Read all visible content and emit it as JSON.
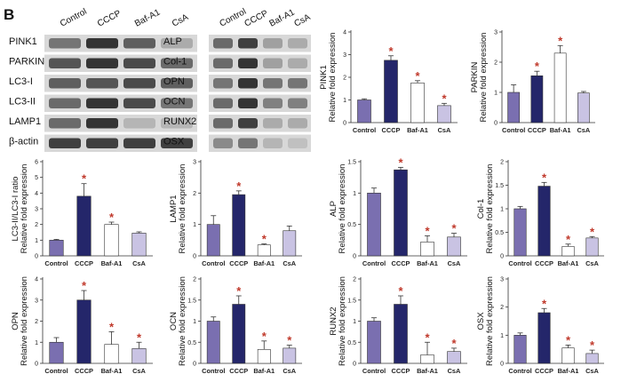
{
  "panel_label": "B",
  "colors": {
    "Control": "#7a6fb0",
    "CCCP": "#24266a",
    "Baf-A1": "#ffffff",
    "CsA": "#c9c3e3",
    "star": "#c0392b"
  },
  "blots": {
    "lanes": [
      "Control",
      "CCCP",
      "Baf-A1",
      "CsA"
    ],
    "left": {
      "rows": [
        {
          "label": "PINK1",
          "intensity": [
            0.55,
            0.85,
            0.65,
            0.3
          ]
        },
        {
          "label": "PARKIN",
          "intensity": [
            0.7,
            0.85,
            0.75,
            0.6
          ]
        },
        {
          "label": "LC3-I",
          "intensity": [
            0.65,
            0.7,
            0.75,
            0.65
          ]
        },
        {
          "label": "LC3-II",
          "intensity": [
            0.6,
            0.85,
            0.75,
            0.55
          ]
        },
        {
          "label": "LAMP1",
          "intensity": [
            0.6,
            0.85,
            0.25,
            0.25
          ]
        },
        {
          "label": "β-actin",
          "intensity": [
            0.8,
            0.8,
            0.8,
            0.8
          ]
        }
      ]
    },
    "right": {
      "rows": [
        {
          "label": "ALP",
          "intensity": [
            0.6,
            0.8,
            0.35,
            0.3
          ]
        },
        {
          "label": "Col-1",
          "intensity": [
            0.6,
            0.85,
            0.35,
            0.3
          ]
        },
        {
          "label": "OPN",
          "intensity": [
            0.55,
            0.85,
            0.55,
            0.55
          ]
        },
        {
          "label": "OCN",
          "intensity": [
            0.6,
            0.85,
            0.5,
            0.5
          ]
        },
        {
          "label": "RUNX2",
          "intensity": [
            0.6,
            0.8,
            0.3,
            0.3
          ]
        },
        {
          "label": "OSX",
          "intensity": [
            0.45,
            0.55,
            0.25,
            0.2
          ]
        }
      ]
    }
  },
  "chart_data": [
    {
      "type": "bar",
      "id": "pink1",
      "categories": [
        "Control",
        "CCCP",
        "Baf-A1",
        "CsA"
      ],
      "values": [
        1.0,
        2.75,
        1.75,
        0.75
      ],
      "errors": [
        0.05,
        0.2,
        0.1,
        0.1
      ],
      "ylabel_top": "PINK1",
      "ylabel_bottom": "Relative fold expression",
      "ylim": [
        0,
        4
      ],
      "ticks": [
        0,
        1,
        2,
        3,
        4
      ],
      "significant": [
        false,
        true,
        true,
        true
      ]
    },
    {
      "type": "bar",
      "id": "parkin",
      "categories": [
        "Control",
        "CCCP",
        "Baf-A1",
        "CsA"
      ],
      "values": [
        1.0,
        1.55,
        2.3,
        0.98
      ],
      "errors": [
        0.25,
        0.15,
        0.25,
        0.05
      ],
      "ylabel_top": "PARKIN",
      "ylabel_bottom": "Relative fold expression",
      "ylim": [
        0,
        3
      ],
      "ticks": [
        0,
        1,
        2,
        3
      ],
      "significant": [
        false,
        true,
        true,
        false
      ]
    },
    {
      "type": "bar",
      "id": "lc3",
      "categories": [
        "Control",
        "CCCP",
        "Baf-A1",
        "CsA"
      ],
      "values": [
        1.0,
        3.8,
        2.0,
        1.45
      ],
      "errors": [
        0.05,
        0.8,
        0.15,
        0.08
      ],
      "ylabel_top": "LC3-II/LC3-I ratio",
      "ylabel_bottom": "Relative fold expression",
      "ylim": [
        0,
        6
      ],
      "ticks": [
        0,
        1,
        2,
        3,
        4,
        5,
        6
      ],
      "significant": [
        false,
        true,
        true,
        false
      ]
    },
    {
      "type": "bar",
      "id": "lamp1",
      "categories": [
        "Control",
        "CCCP",
        "Baf-A1",
        "CsA"
      ],
      "values": [
        1.0,
        1.95,
        0.35,
        0.8
      ],
      "errors": [
        0.28,
        0.12,
        0.03,
        0.15
      ],
      "ylabel_top": "LAMP1",
      "ylabel_bottom": "Relative fold expression",
      "ylim": [
        0,
        3
      ],
      "ticks": [
        0,
        1,
        2,
        3
      ],
      "significant": [
        false,
        true,
        true,
        false
      ]
    },
    {
      "type": "bar",
      "id": "alp",
      "categories": [
        "Control",
        "CCCP",
        "Baf-A1",
        "CsA"
      ],
      "values": [
        1.0,
        1.37,
        0.22,
        0.3
      ],
      "errors": [
        0.08,
        0.04,
        0.1,
        0.06
      ],
      "ylabel_top": "ALP",
      "ylabel_bottom": "Relative fold expression",
      "ylim": [
        0,
        1.5
      ],
      "ticks": [
        0,
        0.5,
        1,
        1.5
      ],
      "tick_labels": [
        "0",
        "0.5",
        "1",
        "1.5"
      ],
      "significant": [
        false,
        true,
        true,
        true
      ]
    },
    {
      "type": "bar",
      "id": "col1",
      "categories": [
        "Control",
        "CCCP",
        "Baf-A1",
        "CsA"
      ],
      "values": [
        1.0,
        1.48,
        0.2,
        0.38
      ],
      "errors": [
        0.05,
        0.08,
        0.05,
        0.03
      ],
      "ylabel_top": "Col-1",
      "ylabel_bottom": "Relative fold expression",
      "ylim": [
        0,
        2
      ],
      "ticks": [
        0,
        0.5,
        1,
        1.5,
        2
      ],
      "tick_labels": [
        "0",
        "0.5",
        "1",
        "1.5",
        "2"
      ],
      "significant": [
        false,
        true,
        true,
        true
      ]
    },
    {
      "type": "bar",
      "id": "opn",
      "categories": [
        "Control",
        "CCCP",
        "Baf-A1",
        "CsA"
      ],
      "values": [
        1.0,
        3.0,
        0.9,
        0.7
      ],
      "errors": [
        0.22,
        0.45,
        0.6,
        0.3
      ],
      "ylabel_top": "OPN",
      "ylabel_bottom": "Relative fold expression",
      "ylim": [
        0,
        4
      ],
      "ticks": [
        0,
        1,
        2,
        3,
        4
      ],
      "significant": [
        false,
        true,
        true,
        true
      ]
    },
    {
      "type": "bar",
      "id": "ocn",
      "categories": [
        "Control",
        "CCCP",
        "Baf-A1",
        "CsA"
      ],
      "values": [
        1.0,
        1.4,
        0.33,
        0.36
      ],
      "errors": [
        0.1,
        0.2,
        0.2,
        0.07
      ],
      "ylabel_top": "OCN",
      "ylabel_bottom": "Relative fold expression",
      "ylim": [
        0,
        2
      ],
      "ticks": [
        0,
        0.5,
        1,
        1.5,
        2
      ],
      "tick_labels": [
        "0",
        "0.5",
        "1",
        "1.5",
        "2"
      ],
      "significant": [
        false,
        true,
        true,
        true
      ]
    },
    {
      "type": "bar",
      "id": "runx2",
      "categories": [
        "Control",
        "CCCP",
        "Baf-A1",
        "CsA"
      ],
      "values": [
        1.0,
        1.4,
        0.2,
        0.28
      ],
      "errors": [
        0.08,
        0.2,
        0.3,
        0.08
      ],
      "ylabel_top": "RUNX2",
      "ylabel_bottom": "Relative fold expression",
      "ylim": [
        0,
        2
      ],
      "ticks": [
        0,
        0.5,
        1,
        1.5,
        2
      ],
      "tick_labels": [
        "0",
        "0.5",
        "1",
        "1.5",
        "2"
      ],
      "significant": [
        false,
        true,
        true,
        true
      ]
    },
    {
      "type": "bar",
      "id": "osx",
      "categories": [
        "Control",
        "CCCP",
        "Baf-A1",
        "CsA"
      ],
      "values": [
        1.0,
        1.8,
        0.55,
        0.35
      ],
      "errors": [
        0.08,
        0.15,
        0.1,
        0.12
      ],
      "ylabel_top": "OSX",
      "ylabel_bottom": "Relative fold expression",
      "ylim": [
        0,
        3
      ],
      "ticks": [
        0,
        1,
        2,
        3
      ],
      "significant": [
        false,
        true,
        true,
        true
      ]
    }
  ]
}
